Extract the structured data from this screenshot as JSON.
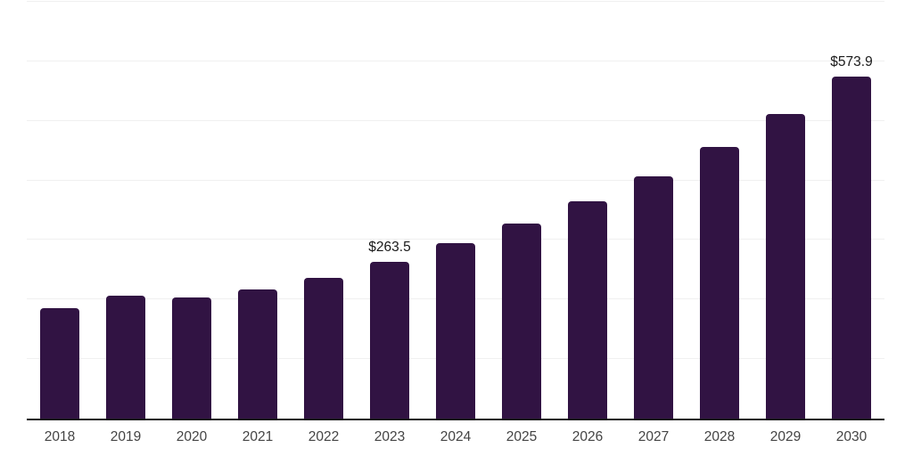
{
  "chart_data": {
    "type": "bar",
    "title": "",
    "xlabel": "",
    "ylabel": "",
    "categories": [
      "2018",
      "2019",
      "2020",
      "2021",
      "2022",
      "2023",
      "2024",
      "2025",
      "2026",
      "2027",
      "2028",
      "2029",
      "2030"
    ],
    "values": [
      185.8,
      206.0,
      204.0,
      216.4,
      236.6,
      263.5,
      294.0,
      326.9,
      364.9,
      407.5,
      456.0,
      511.9,
      573.9
    ],
    "point_labels": [
      "",
      "",
      "",
      "",
      "",
      "$263.5",
      "",
      "",
      "",
      "",
      "",
      "",
      "$573.9"
    ],
    "ylim": [
      0,
      700
    ],
    "gridline_step": 100,
    "grid": true,
    "legend": false,
    "y_tick_labels_visible": false,
    "colors": {
      "bar": "#311343",
      "axis_line": "#1a1a1a",
      "gridline": "#f0f0f0",
      "tick_label": "#444444",
      "value_label": "#1a1a1a",
      "background": "#ffffff"
    }
  }
}
